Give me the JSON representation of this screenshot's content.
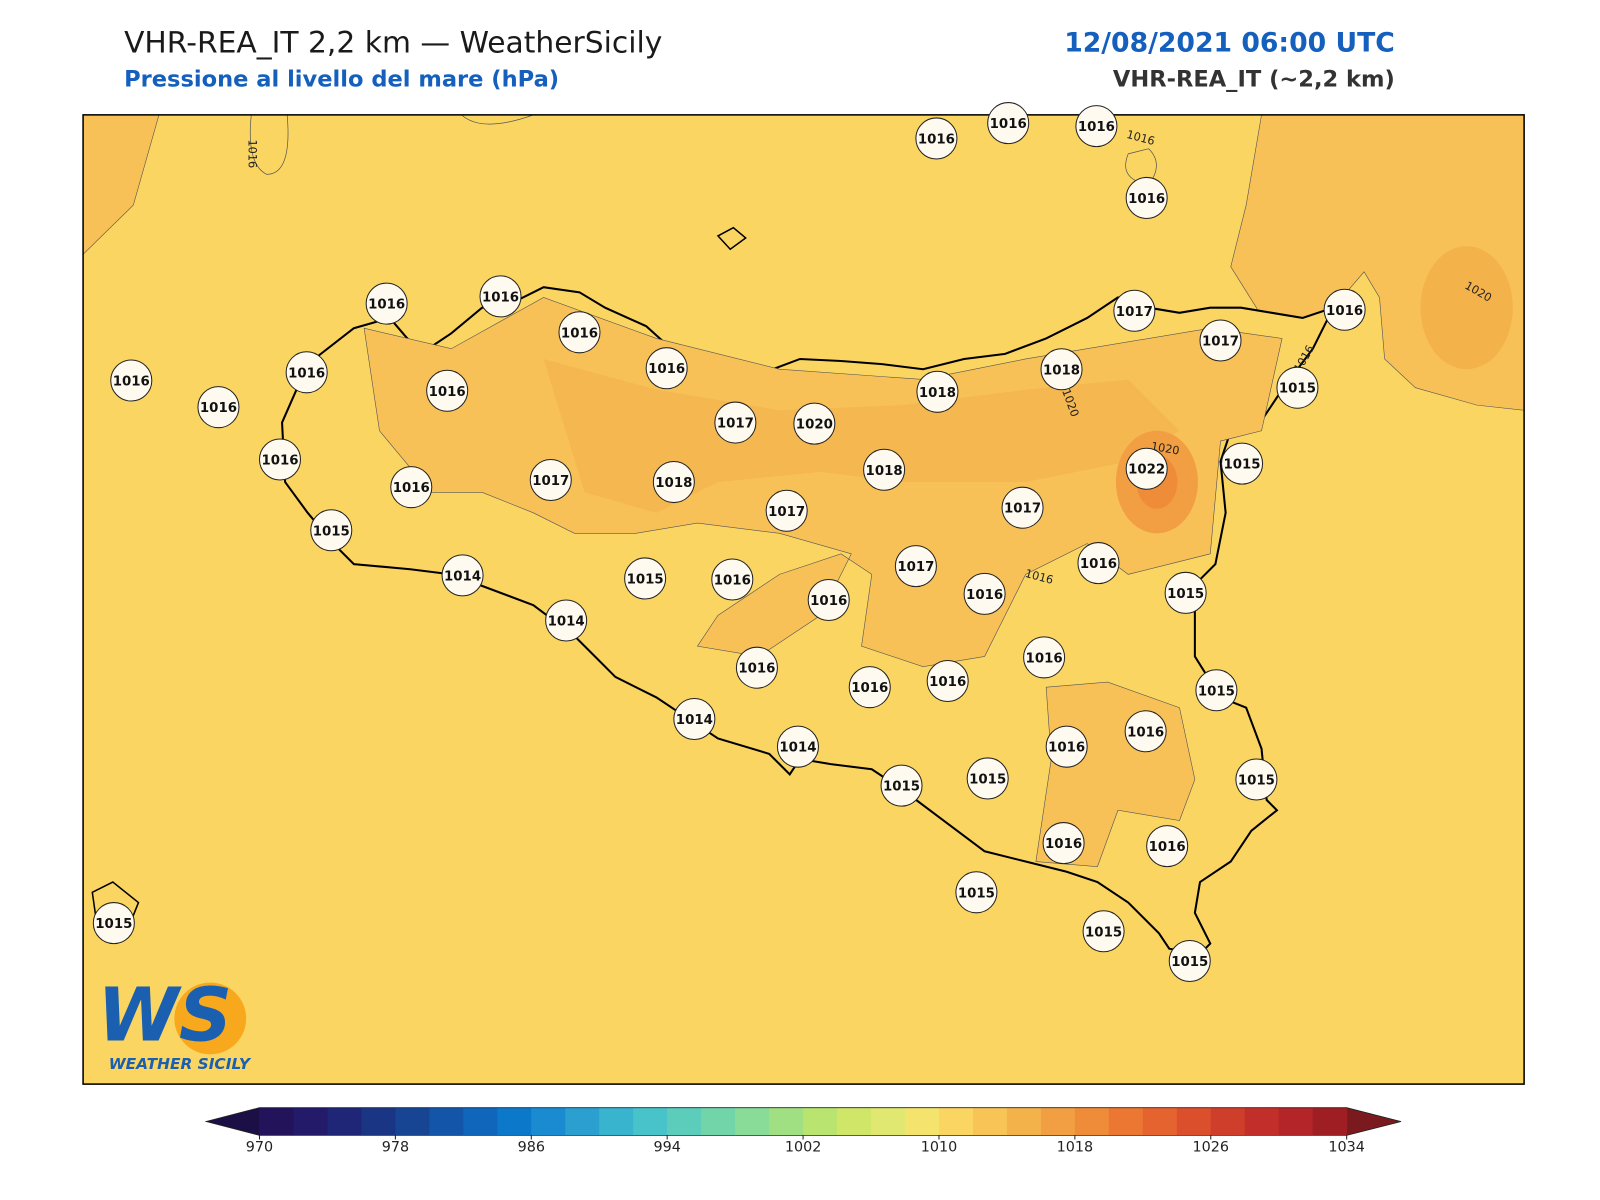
{
  "header": {
    "title": "VHR-REA_IT 2,2 km — WeatherSicily",
    "subtitle": "Pressione al livello del mare (hPa)",
    "datetime": "12/08/2021 06:00 UTC",
    "model": "VHR-REA_IT (~2,2 km)"
  },
  "stations": [
    1016,
    1016,
    1016,
    1016,
    1016,
    1016,
    1016,
    1016,
    1016,
    1016,
    1016,
    1016,
    1016,
    1016,
    1015,
    1017,
    1020,
    1018,
    1018,
    1017,
    1017,
    1016,
    1015,
    1017,
    1018,
    1018,
    1017,
    1022,
    1015,
    1017,
    1014,
    1015,
    1016,
    1016,
    1017,
    1016,
    1016,
    1015,
    1014,
    1016,
    1016,
    1016,
    1016,
    1015,
    1014,
    1014,
    1015,
    1015,
    1016,
    1016,
    1015,
    1016,
    1016,
    1015,
    1015,
    1015,
    1015
  ],
  "contour_labels": [
    1016,
    1016,
    1020,
    1016,
    1020,
    1020,
    1016
  ],
  "colorbar": {
    "min": 970,
    "max": 1034,
    "ticks": [
      970,
      978,
      986,
      994,
      1002,
      1010,
      1018,
      1026,
      1034
    ],
    "colors": [
      "#23135a",
      "#231a6a",
      "#1f2677",
      "#1b3585",
      "#174594",
      "#1355a8",
      "#0f66bb",
      "#0b78c9",
      "#1a8bd0",
      "#2a9fd0",
      "#38b4cf",
      "#48c3c9",
      "#5ccdbb",
      "#72d5aa",
      "#88dc98",
      "#a0e083",
      "#b8e46f",
      "#cfe669",
      "#e0e872",
      "#f4e46e",
      "#fbd562",
      "#f7c455",
      "#f4b24b",
      "#f19f42",
      "#ee8c3a",
      "#eb7733",
      "#e5632f",
      "#dc4f2d",
      "#cf3d2b",
      "#c22f2a",
      "#b32528",
      "#9e1e24"
    ],
    "under_color": "#1c0f45",
    "over_color": "#7a1a1f"
  },
  "logo": {
    "mark": "WS",
    "name": "WEATHER SICILY"
  }
}
